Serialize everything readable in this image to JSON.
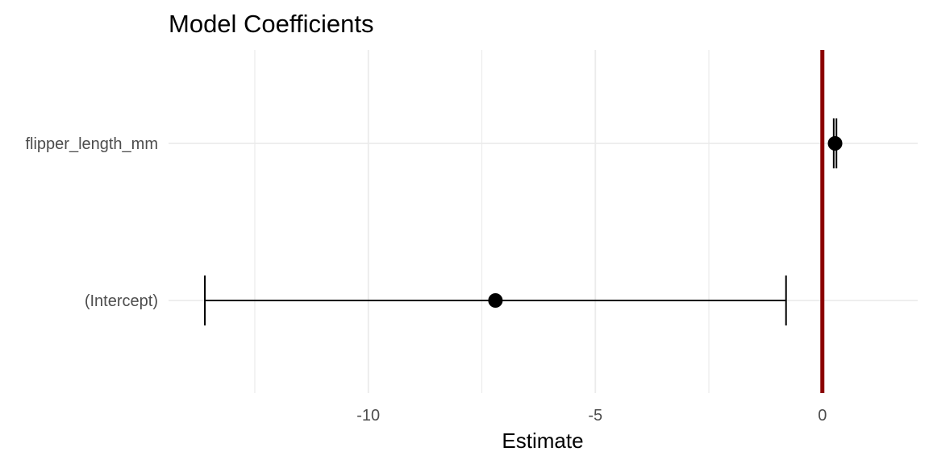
{
  "chart_data": {
    "type": "scatter",
    "title": "Model Coefficients",
    "xlabel": "Estimate",
    "ylabel": "",
    "xlim": [
      -14.4,
      2.1
    ],
    "x_ticks": [
      -10,
      -5,
      0
    ],
    "x_tick_labels": [
      "-10",
      "-5",
      "0"
    ],
    "x_minor_ticks": [
      -12.5,
      -7.5,
      -2.5
    ],
    "categories": [
      "flipper_length_mm",
      "(Intercept)"
    ],
    "series": [
      {
        "estimates": [
          0.28,
          -7.2
        ],
        "ci_low": [
          0.25,
          -13.6
        ],
        "ci_high": [
          0.31,
          -0.8
        ]
      }
    ],
    "reference_line": {
      "x": 0,
      "color": "#8b0000"
    },
    "grid": true,
    "legend": "none",
    "colors": {
      "points": "#000000",
      "errorbars": "#000000",
      "grid": "#ebebeb"
    }
  }
}
